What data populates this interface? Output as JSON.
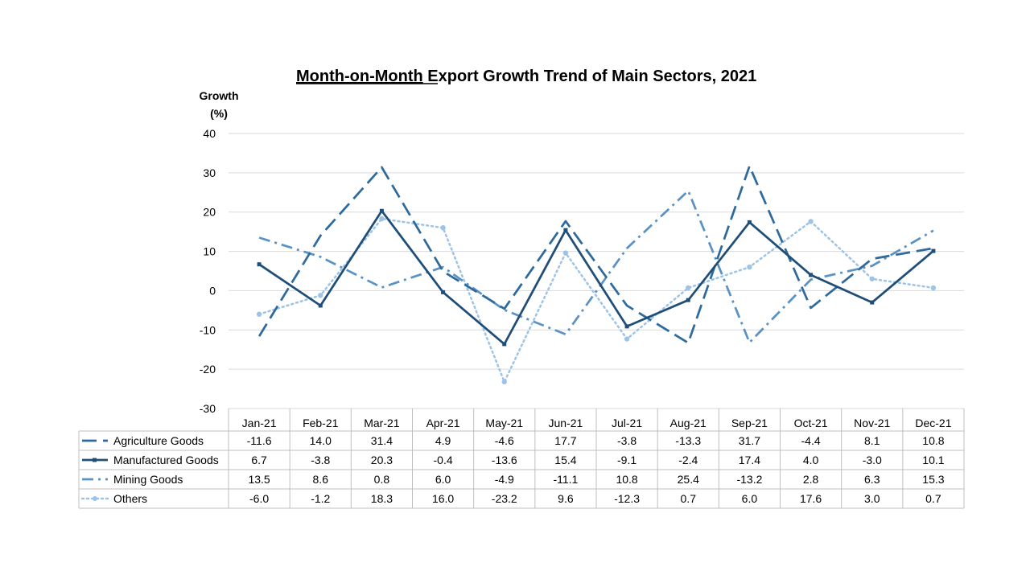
{
  "chart_data": {
    "type": "line",
    "title_underlined": "Month-on-Month",
    "title_rest": " Export Growth Trend of Main Sectors, 2021",
    "ylabel_line1": "Growth",
    "ylabel_line2": "(%)",
    "xlabel": "",
    "ylim": [
      -30,
      40
    ],
    "ytick_values": [
      -30,
      -20,
      -10,
      0,
      10,
      20,
      30,
      40
    ],
    "yticks": [
      "-30",
      "-20",
      "-10",
      "0",
      "10",
      "20",
      "30",
      "40"
    ],
    "grid": true,
    "legend": "data-table-left",
    "categories": [
      "Jan-21",
      "Feb-21",
      "Mar-21",
      "Apr-21",
      "May-21",
      "Jun-21",
      "Jul-21",
      "Aug-21",
      "Sep-21",
      "Oct-21",
      "Nov-21",
      "Dec-21"
    ],
    "series": [
      {
        "name": "Agriculture Goods",
        "color": "#2e6a9c",
        "style": "long-dash",
        "marker": "none",
        "values": [
          -11.6,
          14.0,
          31.4,
          4.9,
          -4.6,
          17.7,
          -3.8,
          -13.3,
          31.7,
          -4.4,
          8.1,
          10.8
        ],
        "labels": [
          "-11.6",
          "14.0",
          "31.4",
          "4.9",
          "-4.6",
          "17.7",
          "-3.8",
          "-13.3",
          "31.7",
          "-4.4",
          "8.1",
          "10.8"
        ]
      },
      {
        "name": "Manufactured Goods",
        "color": "#1f4e79",
        "style": "solid",
        "marker": "square",
        "values": [
          6.7,
          -3.8,
          20.3,
          -0.4,
          -13.6,
          15.4,
          -9.1,
          -2.4,
          17.4,
          4.0,
          -3.0,
          10.1
        ],
        "labels": [
          "6.7",
          "-3.8",
          "20.3",
          "-0.4",
          "-13.6",
          "15.4",
          "-9.1",
          "-2.4",
          "17.4",
          "4.0",
          "-3.0",
          "10.1"
        ]
      },
      {
        "name": "Mining Goods",
        "color": "#5b92c4",
        "style": "dash-dot",
        "marker": "none",
        "values": [
          13.5,
          8.6,
          0.8,
          6.0,
          -4.9,
          -11.1,
          10.8,
          25.4,
          -13.2,
          2.8,
          6.3,
          15.3
        ],
        "labels": [
          "13.5",
          "8.6",
          "0.8",
          "6.0",
          "-4.9",
          "-11.1",
          "10.8",
          "25.4",
          "-13.2",
          "2.8",
          "6.3",
          "15.3"
        ]
      },
      {
        "name": "Others",
        "color": "#9dc3e6",
        "style": "dotted",
        "marker": "circle",
        "values": [
          -6.0,
          -1.2,
          18.3,
          16.0,
          -23.2,
          9.6,
          -12.3,
          0.7,
          6.0,
          17.6,
          3.0,
          0.7
        ],
        "labels": [
          "-6.0",
          "-1.2",
          "18.3",
          "16.0",
          "-23.2",
          "9.6",
          "-12.3",
          "0.7",
          "6.0",
          "17.6",
          "3.0",
          "0.7"
        ]
      }
    ]
  }
}
